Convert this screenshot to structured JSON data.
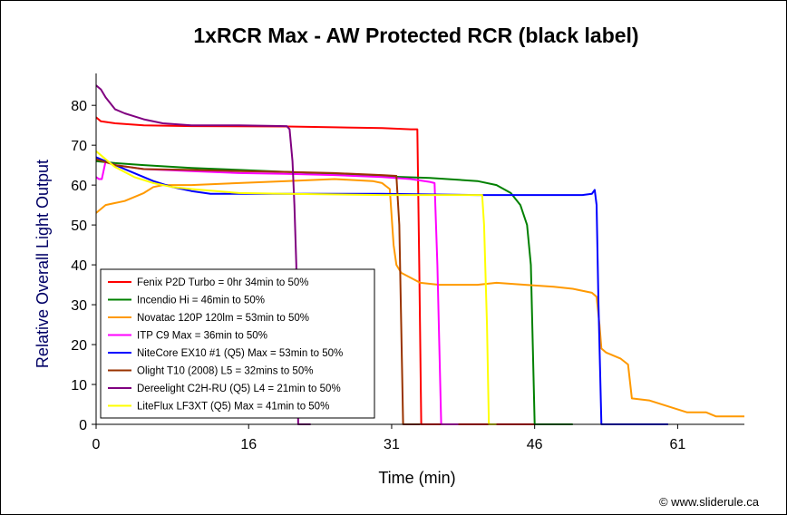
{
  "chart_data": {
    "type": "line",
    "title": "1xRCR Max - AW Protected RCR (black label)",
    "xlabel": "Time (min)",
    "ylabel": "Relative Overall Light Output",
    "xlim": [
      0,
      68
    ],
    "ylim": [
      0,
      88
    ],
    "xticks": [
      0,
      16,
      31,
      46,
      61
    ],
    "yticks": [
      0,
      10,
      20,
      30,
      40,
      50,
      60,
      70,
      80
    ],
    "grid": false,
    "legend_position": "lower-left",
    "credit": "© www.sliderule.ca",
    "series": [
      {
        "name": "Fenix P2D Turbo = 0hr 34min to 50%",
        "color": "#ff0000",
        "points": [
          [
            0,
            77
          ],
          [
            0.5,
            76
          ],
          [
            2,
            75.5
          ],
          [
            5,
            75
          ],
          [
            10,
            74.8
          ],
          [
            20,
            74.7
          ],
          [
            25,
            74.5
          ],
          [
            30,
            74.3
          ],
          [
            33,
            74
          ],
          [
            33.7,
            74
          ],
          [
            33.9,
            40
          ],
          [
            34.1,
            0
          ],
          [
            46,
            0
          ]
        ]
      },
      {
        "name": "Incendio Hi = 46min to 50%",
        "color": "#008000",
        "points": [
          [
            0,
            66
          ],
          [
            2,
            65.5
          ],
          [
            5,
            65
          ],
          [
            10,
            64.3
          ],
          [
            15,
            63.8
          ],
          [
            20,
            63.3
          ],
          [
            25,
            62.8
          ],
          [
            30,
            62.2
          ],
          [
            35,
            61.8
          ],
          [
            40,
            61
          ],
          [
            42,
            60
          ],
          [
            43.5,
            58
          ],
          [
            44.5,
            55
          ],
          [
            45.2,
            50
          ],
          [
            45.6,
            40
          ],
          [
            45.8,
            20
          ],
          [
            46,
            0
          ],
          [
            50,
            0
          ]
        ]
      },
      {
        "name": "Novatac 120P 120lm = 53min to 50%",
        "color": "#ff9900",
        "points": [
          [
            0,
            53
          ],
          [
            0.5,
            54
          ],
          [
            1,
            55
          ],
          [
            2,
            55.5
          ],
          [
            3,
            56
          ],
          [
            4,
            57
          ],
          [
            5,
            58
          ],
          [
            6,
            59.5
          ],
          [
            7,
            60
          ],
          [
            10,
            60
          ],
          [
            15,
            60.5
          ],
          [
            20,
            61
          ],
          [
            25,
            61.5
          ],
          [
            29,
            61
          ],
          [
            30,
            60.5
          ],
          [
            30.8,
            59
          ],
          [
            31,
            52
          ],
          [
            31.2,
            45
          ],
          [
            31.5,
            40
          ],
          [
            32,
            38
          ],
          [
            34,
            35.5
          ],
          [
            36,
            35
          ],
          [
            40,
            35
          ],
          [
            42,
            35.5
          ],
          [
            45,
            35
          ],
          [
            48,
            34.5
          ],
          [
            50,
            34
          ],
          [
            52,
            33
          ],
          [
            52.5,
            32
          ],
          [
            52.8,
            25
          ],
          [
            53,
            19
          ],
          [
            53.5,
            18
          ],
          [
            55,
            16.5
          ],
          [
            55.8,
            15
          ],
          [
            56.2,
            6.5
          ],
          [
            58,
            6
          ],
          [
            60,
            4.5
          ],
          [
            62,
            3
          ],
          [
            64,
            3
          ],
          [
            65,
            2
          ],
          [
            68,
            2
          ]
        ]
      },
      {
        "name": "ITP C9 Max = 36min to 50%",
        "color": "#ff00ff",
        "points": [
          [
            0,
            62
          ],
          [
            0.3,
            61.5
          ],
          [
            0.6,
            61.5
          ],
          [
            1,
            66
          ],
          [
            2,
            65
          ],
          [
            5,
            64
          ],
          [
            10,
            63.5
          ],
          [
            15,
            63
          ],
          [
            20,
            62.8
          ],
          [
            25,
            62.5
          ],
          [
            30,
            62
          ],
          [
            33,
            61.5
          ],
          [
            35,
            60.8
          ],
          [
            35.5,
            60.5
          ],
          [
            35.8,
            40
          ],
          [
            36,
            20
          ],
          [
            36.2,
            0
          ],
          [
            38,
            0
          ]
        ]
      },
      {
        "name": "NiteCore EX10 #1 (Q5) Max = 53min to 50%",
        "color": "#0000ff",
        "points": [
          [
            0,
            67
          ],
          [
            1,
            66
          ],
          [
            2,
            65
          ],
          [
            4,
            63
          ],
          [
            6,
            61
          ],
          [
            8,
            59.5
          ],
          [
            10,
            58.5
          ],
          [
            12,
            57.8
          ],
          [
            20,
            57.8
          ],
          [
            30,
            57.8
          ],
          [
            40,
            57.5
          ],
          [
            48,
            57.5
          ],
          [
            51,
            57.5
          ],
          [
            52,
            57.8
          ],
          [
            52.3,
            58.8
          ],
          [
            52.5,
            55
          ],
          [
            52.7,
            30
          ],
          [
            53,
            0
          ],
          [
            60,
            0
          ]
        ]
      },
      {
        "name": "Olight T10 (2008) L5 = 32mins to 50%",
        "color": "#993300",
        "points": [
          [
            0,
            66.5
          ],
          [
            2,
            65
          ],
          [
            5,
            64
          ],
          [
            10,
            63.8
          ],
          [
            15,
            63.5
          ],
          [
            20,
            63.3
          ],
          [
            25,
            63
          ],
          [
            30,
            62.5
          ],
          [
            31.5,
            62.3
          ],
          [
            31.8,
            50
          ],
          [
            32,
            25
          ],
          [
            32.2,
            0
          ],
          [
            34,
            0
          ]
        ]
      },
      {
        "name": "Dereelight C2H-RU (Q5) L4 = 21min to 50%",
        "color": "#800080",
        "points": [
          [
            0,
            85
          ],
          [
            0.5,
            84
          ],
          [
            1,
            82
          ],
          [
            2,
            79
          ],
          [
            3,
            78
          ],
          [
            5,
            76.5
          ],
          [
            7,
            75.5
          ],
          [
            10,
            75
          ],
          [
            15,
            75
          ],
          [
            20,
            74.8
          ],
          [
            20.3,
            74
          ],
          [
            20.6,
            66
          ],
          [
            20.8,
            55
          ],
          [
            21,
            40
          ],
          [
            21.2,
            0
          ],
          [
            22.5,
            0
          ]
        ]
      },
      {
        "name": "LiteFlux LF3XT (Q5) Max = 41min to 50%",
        "color": "#ffff00",
        "points": [
          [
            0,
            68.5
          ],
          [
            0.5,
            67.5
          ],
          [
            1,
            66.5
          ],
          [
            2,
            64.5
          ],
          [
            4,
            62
          ],
          [
            6,
            60.5
          ],
          [
            8,
            59.5
          ],
          [
            10,
            59
          ],
          [
            15,
            58
          ],
          [
            20,
            57.8
          ],
          [
            30,
            57.5
          ],
          [
            35,
            57.5
          ],
          [
            40,
            57.5
          ],
          [
            40.5,
            57.5
          ],
          [
            40.7,
            50
          ],
          [
            41,
            25
          ],
          [
            41.2,
            0
          ],
          [
            42,
            0
          ]
        ]
      }
    ]
  }
}
